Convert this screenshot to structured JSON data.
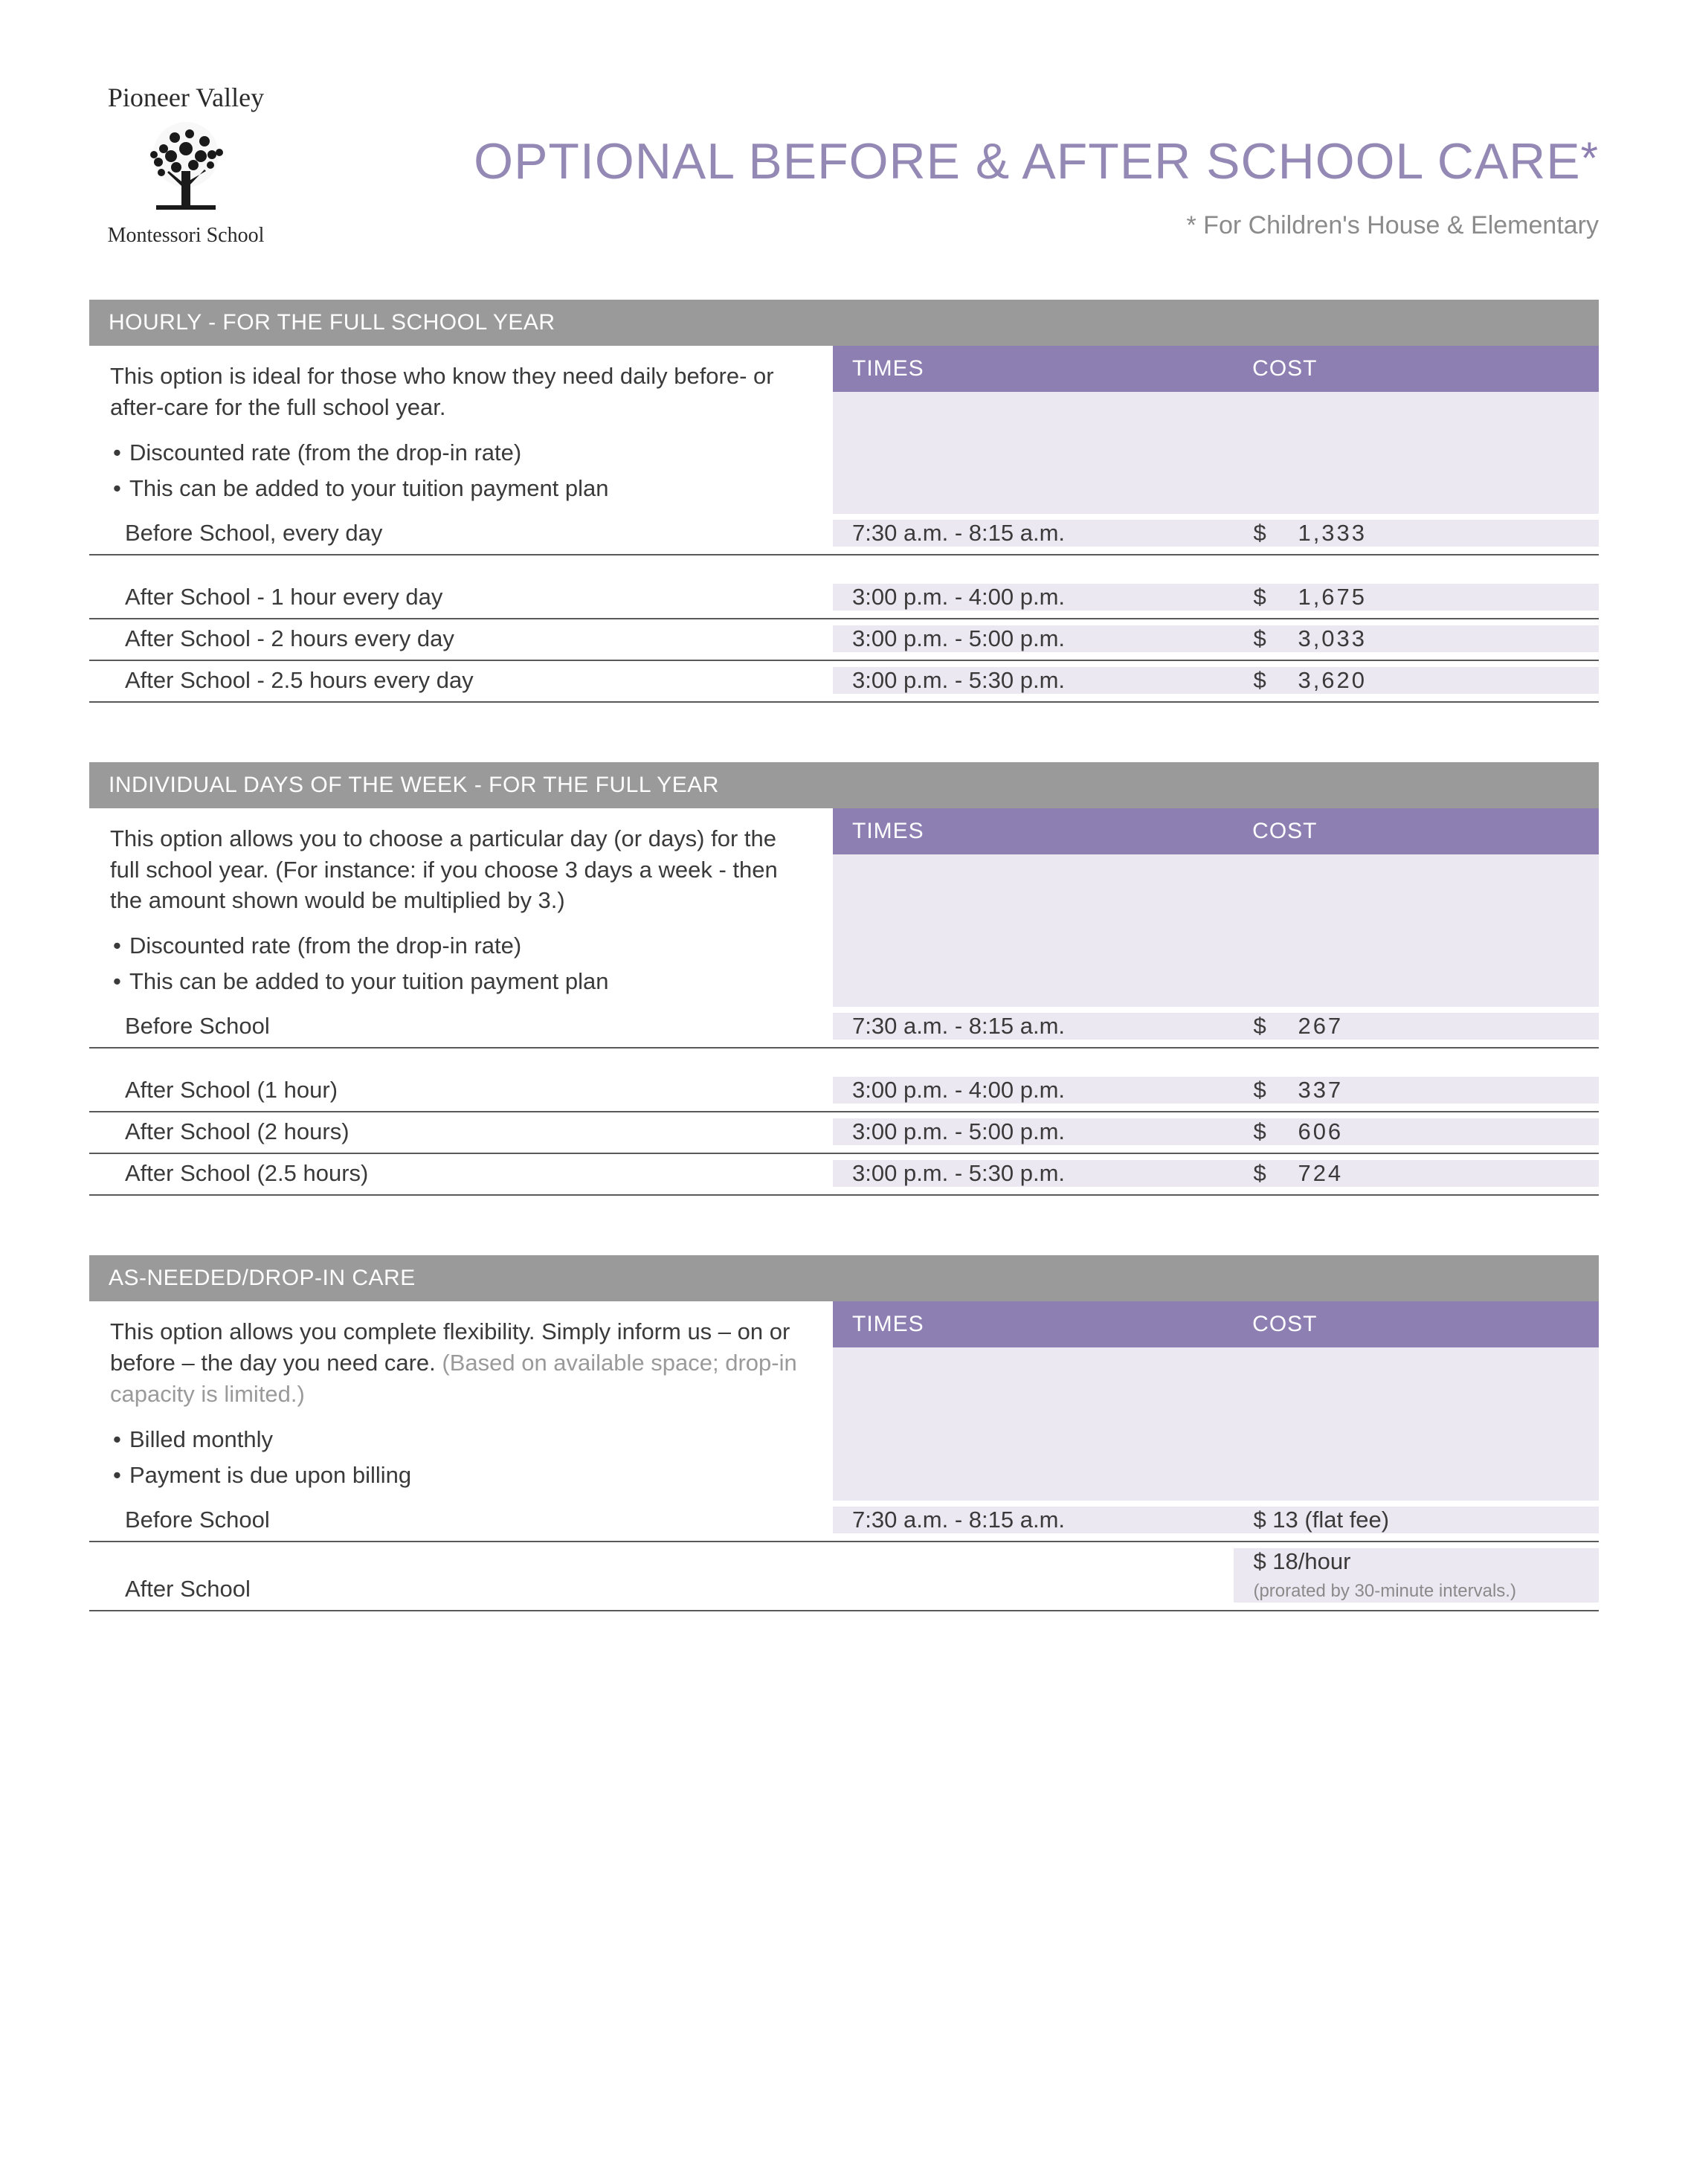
{
  "colors": {
    "title": "#9488b5",
    "subtitle": "#8b8b8b",
    "section_header_bg": "#9a9a9a",
    "data_header_bg": "#8e7fb2",
    "data_bg": "#ebe8f1",
    "rule": "#5a5a5a",
    "text": "#3a3a3a",
    "faded": "#9a9a9a"
  },
  "logo": {
    "top": "Pioneer Valley",
    "bottom": "Montessori School"
  },
  "title": "OPTIONAL BEFORE & AFTER SCHOOL CARE",
  "title_star": "*",
  "subtitle": "* For Children's House & Elementary",
  "column_headers": {
    "times": "TIMES",
    "cost": "COST"
  },
  "currency": "$",
  "sections": [
    {
      "header": "HOURLY - FOR THE FULL SCHOOL YEAR",
      "desc": "This option is ideal for those who know they need daily before- or after-care for the full school year.",
      "bullets": [
        "Discounted rate (from the drop-in rate)",
        "This can be added to your tuition payment plan"
      ],
      "groups": [
        [
          {
            "label": "Before School, every day",
            "times": "7:30 a.m. - 8:15 a.m.",
            "cost": "1,333"
          }
        ],
        [
          {
            "label": "After School - 1  hour every day",
            "times": "3:00 p.m. - 4:00 p.m.",
            "cost": "1,675"
          },
          {
            "label": "After School - 2  hours every day",
            "times": "3:00 p.m. - 5:00 p.m.",
            "cost": "3,033"
          },
          {
            "label": "After School - 2.5  hours every day",
            "times": "3:00 p.m. - 5:30 p.m.",
            "cost": "3,620"
          }
        ]
      ]
    },
    {
      "header": "INDIVIDUAL DAYS OF THE WEEK - FOR THE FULL YEAR",
      "desc": "This option allows you to choose a particular day (or days) for the full school year. (For instance: if you choose 3 days a week - then the amount shown would be multiplied by 3.)",
      "bullets": [
        "Discounted rate (from the drop-in rate)",
        "This can be added to your tuition payment plan"
      ],
      "groups": [
        [
          {
            "label": "Before School",
            "times": "7:30 a.m. - 8:15 a.m.",
            "cost": "267"
          }
        ],
        [
          {
            "label": "After School (1 hour)",
            "times": "3:00 p.m. - 4:00 p.m.",
            "cost": "337"
          },
          {
            "label": "After School (2 hours)",
            "times": "3:00 p.m. - 5:00 p.m.",
            "cost": "606"
          },
          {
            "label": "After School (2.5 hours)",
            "times": "3:00 p.m. - 5:30 p.m.",
            "cost": "724"
          }
        ]
      ]
    },
    {
      "header": "AS-NEEDED/DROP-IN CARE",
      "desc": "This option allows you complete flexibility.  Simply inform us – on or before – the day you need care. ",
      "desc_faded": "(Based on available space; drop-in capacity is limited.)",
      "bullets": [
        "Billed monthly",
        "Payment is due upon billing"
      ],
      "groups": [
        [
          {
            "label": "Before School",
            "times": "7:30 a.m. - 8:15 a.m.",
            "cost_text": "$ 13 (flat fee)"
          },
          {
            "label": "After School",
            "times": "",
            "cost_text": "$ 18/hour",
            "cost_note": "(prorated by 30-minute intervals.)"
          }
        ]
      ],
      "tight": true
    }
  ]
}
